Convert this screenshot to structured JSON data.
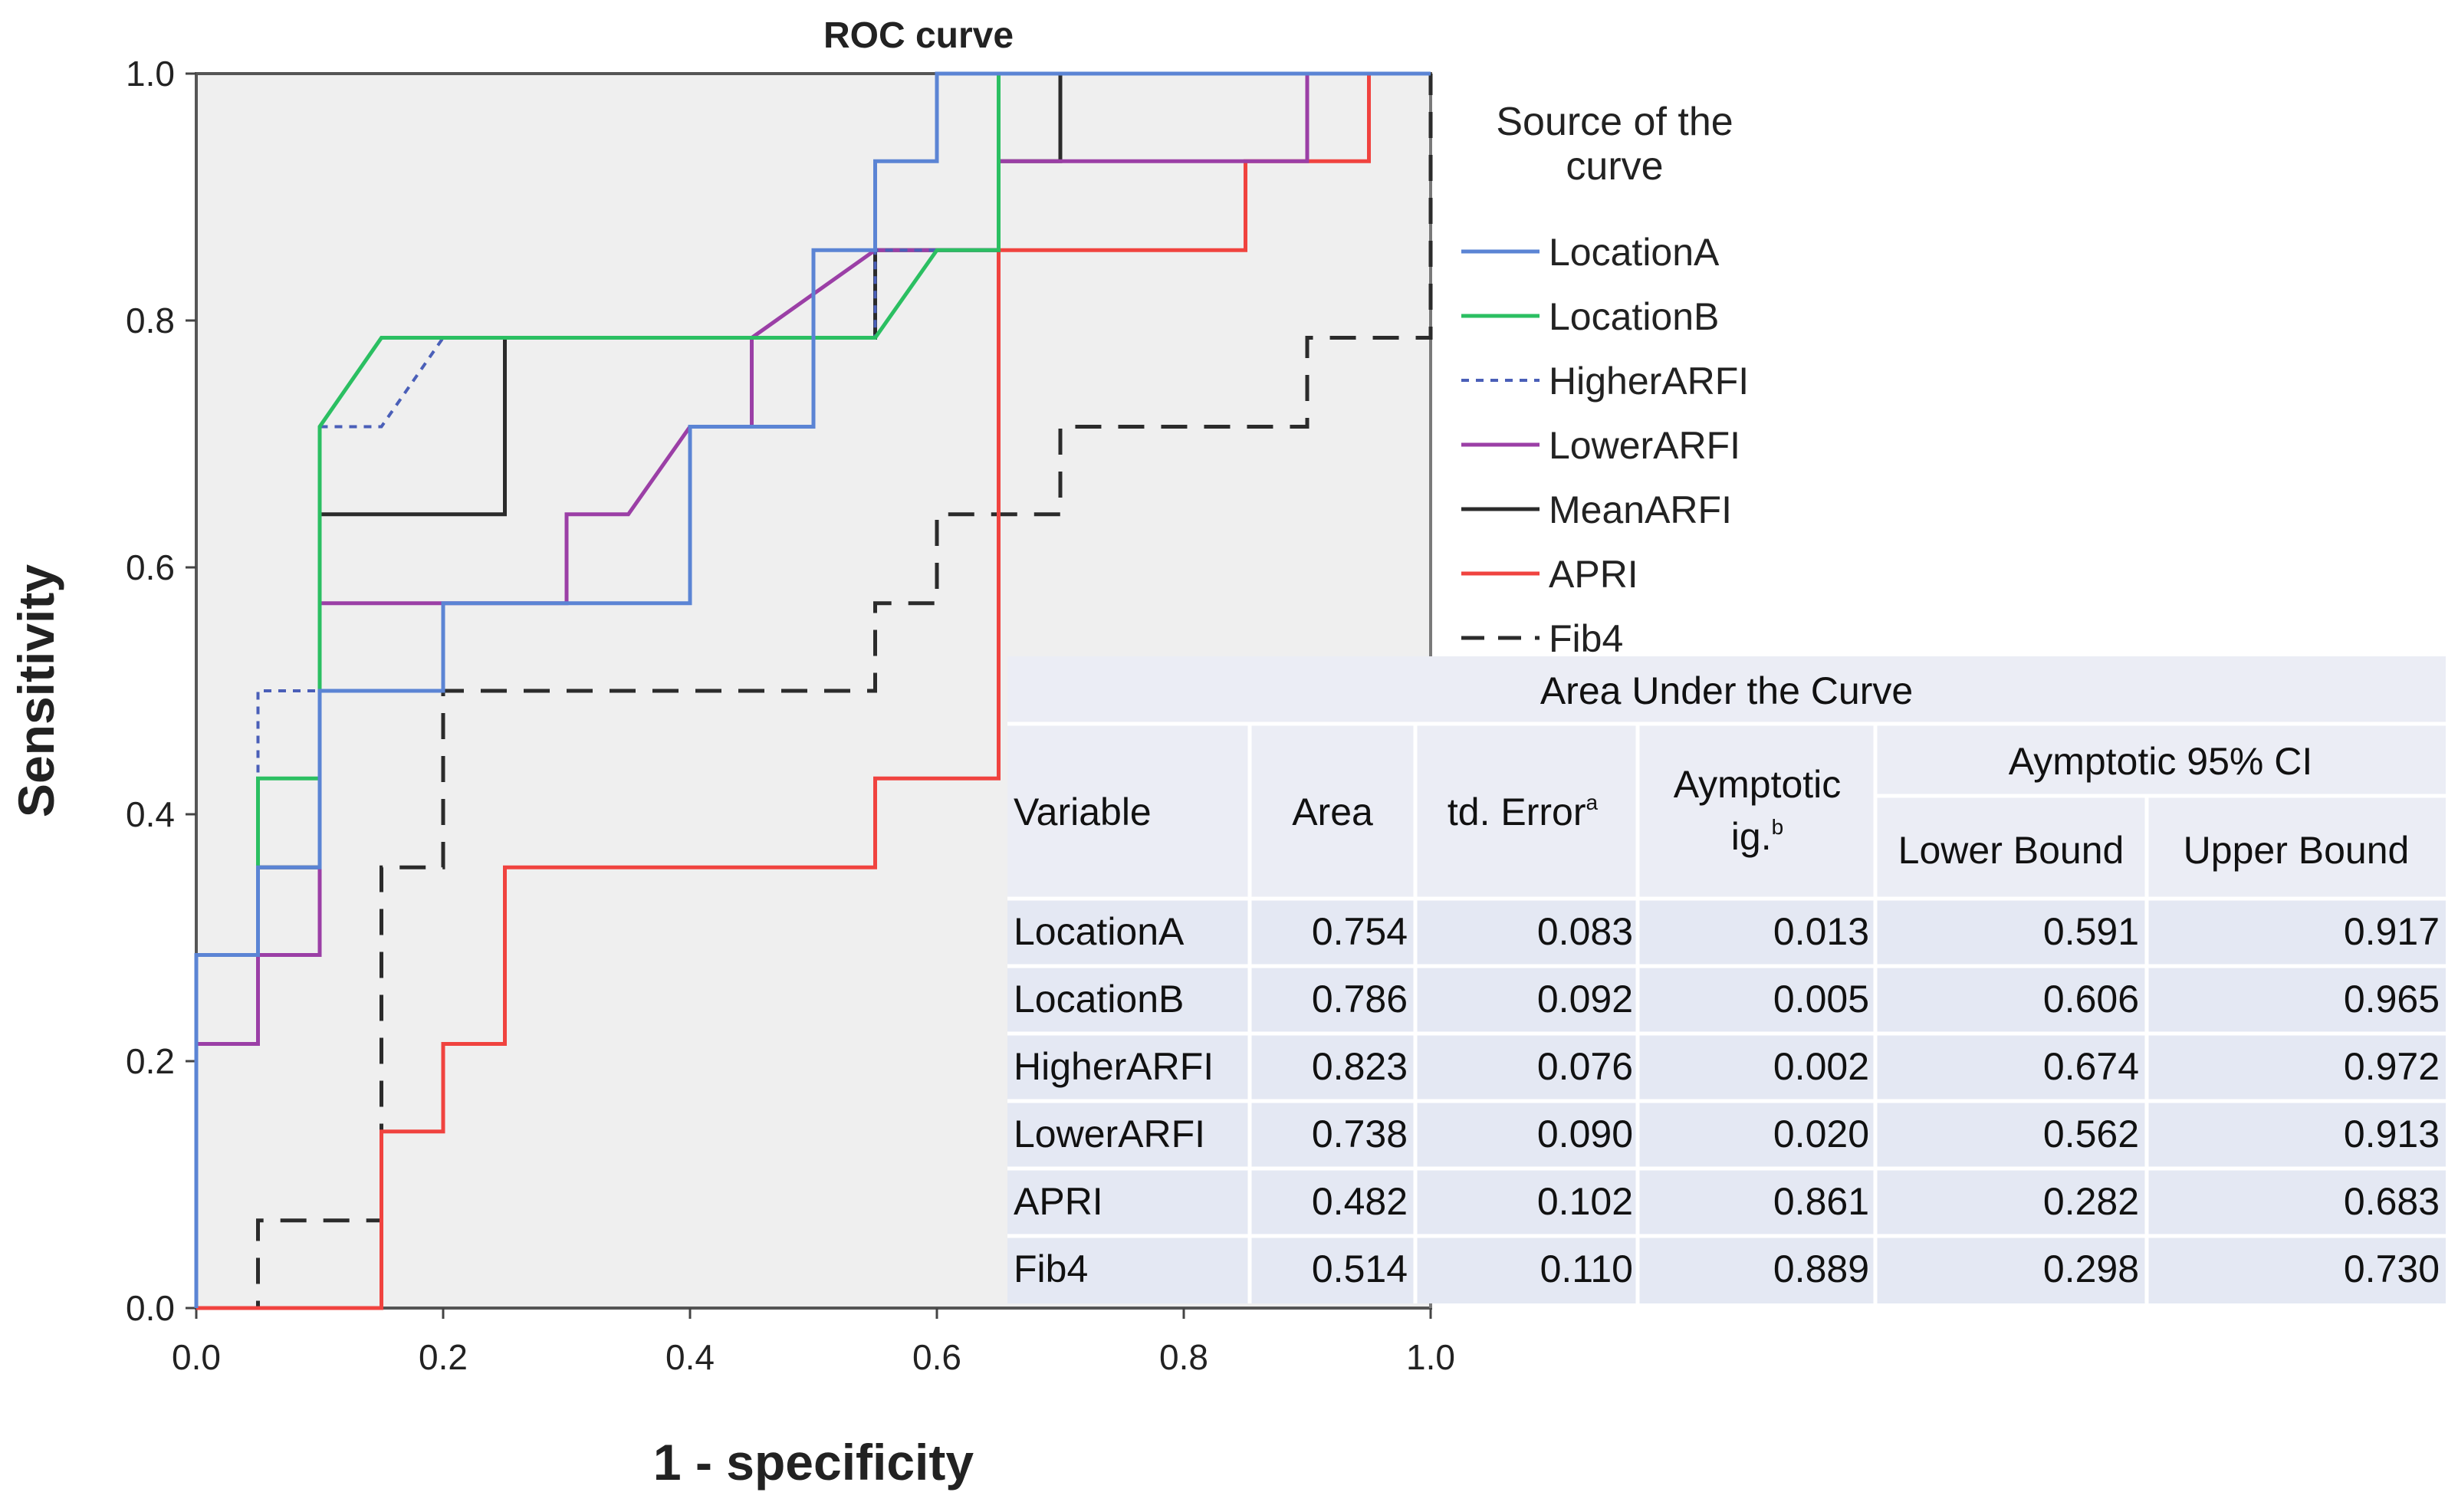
{
  "chart_data": {
    "type": "line",
    "title": "ROC curve",
    "xlabel": "1 - specificity",
    "ylabel": "Sensitivity",
    "xlim": [
      0,
      1
    ],
    "ylim": [
      0,
      1
    ],
    "x_ticks": [
      "0.0",
      "0.2",
      "0.4",
      "0.6",
      "0.8",
      "1.0"
    ],
    "y_ticks": [
      "0.0",
      "0.2",
      "0.4",
      "0.6",
      "0.8",
      "1.0"
    ],
    "legend_title": "Source of the curve",
    "series": [
      {
        "name": "LocationA",
        "color": "#5b84d4",
        "dash": "solid",
        "points": [
          [
            0,
            0
          ],
          [
            0,
            0.286
          ],
          [
            0.05,
            0.286
          ],
          [
            0.05,
            0.357
          ],
          [
            0.1,
            0.357
          ],
          [
            0.1,
            0.5
          ],
          [
            0.2,
            0.5
          ],
          [
            0.2,
            0.571
          ],
          [
            0.4,
            0.571
          ],
          [
            0.4,
            0.714
          ],
          [
            0.5,
            0.714
          ],
          [
            0.5,
            0.857
          ],
          [
            0.55,
            0.857
          ],
          [
            0.55,
            0.929
          ],
          [
            0.6,
            0.929
          ],
          [
            0.6,
            1
          ],
          [
            1,
            1
          ]
        ]
      },
      {
        "name": "LocationB",
        "color": "#2bbf62",
        "dash": "solid",
        "points": [
          [
            0,
            0
          ],
          [
            0,
            0.286
          ],
          [
            0.05,
            0.286
          ],
          [
            0.05,
            0.429
          ],
          [
            0.1,
            0.429
          ],
          [
            0.1,
            0.714
          ],
          [
            0.15,
            0.786
          ],
          [
            0.55,
            0.786
          ],
          [
            0.6,
            0.857
          ],
          [
            0.65,
            0.857
          ],
          [
            0.65,
            1
          ],
          [
            1,
            1
          ]
        ]
      },
      {
        "name": "HigherARFI",
        "color": "#4a5fb8",
        "dash": "dotted",
        "points": [
          [
            0,
            0
          ],
          [
            0,
            0.286
          ],
          [
            0.05,
            0.286
          ],
          [
            0.05,
            0.5
          ],
          [
            0.1,
            0.5
          ],
          [
            0.1,
            0.714
          ],
          [
            0.15,
            0.714
          ],
          [
            0.2,
            0.786
          ],
          [
            0.55,
            0.786
          ],
          [
            0.55,
            0.857
          ],
          [
            0.65,
            0.857
          ],
          [
            0.65,
            1
          ],
          [
            1,
            1
          ]
        ]
      },
      {
        "name": "LowerARFI",
        "color": "#9b3fa6",
        "dash": "solid",
        "points": [
          [
            0,
            0
          ],
          [
            0,
            0.214
          ],
          [
            0.05,
            0.214
          ],
          [
            0.05,
            0.286
          ],
          [
            0.1,
            0.286
          ],
          [
            0.1,
            0.571
          ],
          [
            0.3,
            0.571
          ],
          [
            0.3,
            0.643
          ],
          [
            0.35,
            0.643
          ],
          [
            0.4,
            0.714
          ],
          [
            0.45,
            0.714
          ],
          [
            0.45,
            0.786
          ],
          [
            0.55,
            0.857
          ],
          [
            0.65,
            0.857
          ],
          [
            0.65,
            0.929
          ],
          [
            0.9,
            0.929
          ],
          [
            0.9,
            1
          ],
          [
            1,
            1
          ]
        ]
      },
      {
        "name": "MeanARFI",
        "color": "#2b2b2b",
        "dash": "solid",
        "points": [
          [
            0,
            0
          ],
          [
            0,
            0.286
          ],
          [
            0.05,
            0.286
          ],
          [
            0.05,
            0.357
          ],
          [
            0.1,
            0.357
          ],
          [
            0.1,
            0.643
          ],
          [
            0.25,
            0.643
          ],
          [
            0.25,
            0.786
          ],
          [
            0.55,
            0.786
          ],
          [
            0.55,
            0.857
          ],
          [
            0.65,
            0.857
          ],
          [
            0.65,
            0.929
          ],
          [
            0.7,
            0.929
          ],
          [
            0.7,
            1
          ],
          [
            1,
            1
          ]
        ]
      },
      {
        "name": "APRI",
        "color": "#f0433f",
        "dash": "solid",
        "points": [
          [
            0,
            0
          ],
          [
            0.15,
            0
          ],
          [
            0.15,
            0.143
          ],
          [
            0.2,
            0.143
          ],
          [
            0.2,
            0.214
          ],
          [
            0.25,
            0.214
          ],
          [
            0.25,
            0.357
          ],
          [
            0.55,
            0.357
          ],
          [
            0.55,
            0.429
          ],
          [
            0.65,
            0.429
          ],
          [
            0.65,
            0.857
          ],
          [
            0.85,
            0.857
          ],
          [
            0.85,
            0.929
          ],
          [
            0.95,
            0.929
          ],
          [
            0.95,
            1
          ],
          [
            1,
            1
          ]
        ]
      },
      {
        "name": "Fib4",
        "color": "#2b2b2b",
        "dash": "dashed",
        "points": [
          [
            0,
            0
          ],
          [
            0.05,
            0
          ],
          [
            0.05,
            0.071
          ],
          [
            0.15,
            0.071
          ],
          [
            0.15,
            0.357
          ],
          [
            0.2,
            0.357
          ],
          [
            0.2,
            0.5
          ],
          [
            0.55,
            0.5
          ],
          [
            0.55,
            0.571
          ],
          [
            0.6,
            0.571
          ],
          [
            0.6,
            0.643
          ],
          [
            0.7,
            0.643
          ],
          [
            0.7,
            0.714
          ],
          [
            0.9,
            0.714
          ],
          [
            0.9,
            0.786
          ],
          [
            1,
            0.786
          ],
          [
            1,
            1
          ]
        ]
      }
    ],
    "reference_line": {
      "name": "reference",
      "points": [
        [
          1,
          0
        ],
        [
          1,
          1
        ]
      ]
    }
  },
  "auc_table": {
    "title": "Area Under the Curve",
    "headers": {
      "variable": "Variable",
      "area": "Area",
      "std_error": "td. Error",
      "std_error_sup": "a",
      "asymptotic_line1": "Aymptotic",
      "asymptotic_line2": "ig.",
      "asymptotic_sup": "b",
      "ci_group": "Aymptotic 95% CI",
      "lower": "Lower Bound",
      "upper": "Upper Bound"
    },
    "rows": [
      {
        "variable": "LocationA",
        "area": "0.754",
        "std_error": "0.083",
        "sig": "0.013",
        "lower": "0.591",
        "upper": "0.917"
      },
      {
        "variable": "LocationB",
        "area": "0.786",
        "std_error": "0.092",
        "sig": "0.005",
        "lower": "0.606",
        "upper": "0.965"
      },
      {
        "variable": "HigherARFI",
        "area": "0.823",
        "std_error": "0.076",
        "sig": "0.002",
        "lower": "0.674",
        "upper": "0.972"
      },
      {
        "variable": "LowerARFI",
        "area": "0.738",
        "std_error": "0.090",
        "sig": "0.020",
        "lower": "0.562",
        "upper": "0.913"
      },
      {
        "variable": "APRI",
        "area": "0.482",
        "std_error": "0.102",
        "sig": "0.861",
        "lower": "0.282",
        "upper": "0.683"
      },
      {
        "variable": "Fib4",
        "area": "0.514",
        "std_error": "0.110",
        "sig": "0.889",
        "lower": "0.298",
        "upper": "0.730"
      }
    ]
  }
}
